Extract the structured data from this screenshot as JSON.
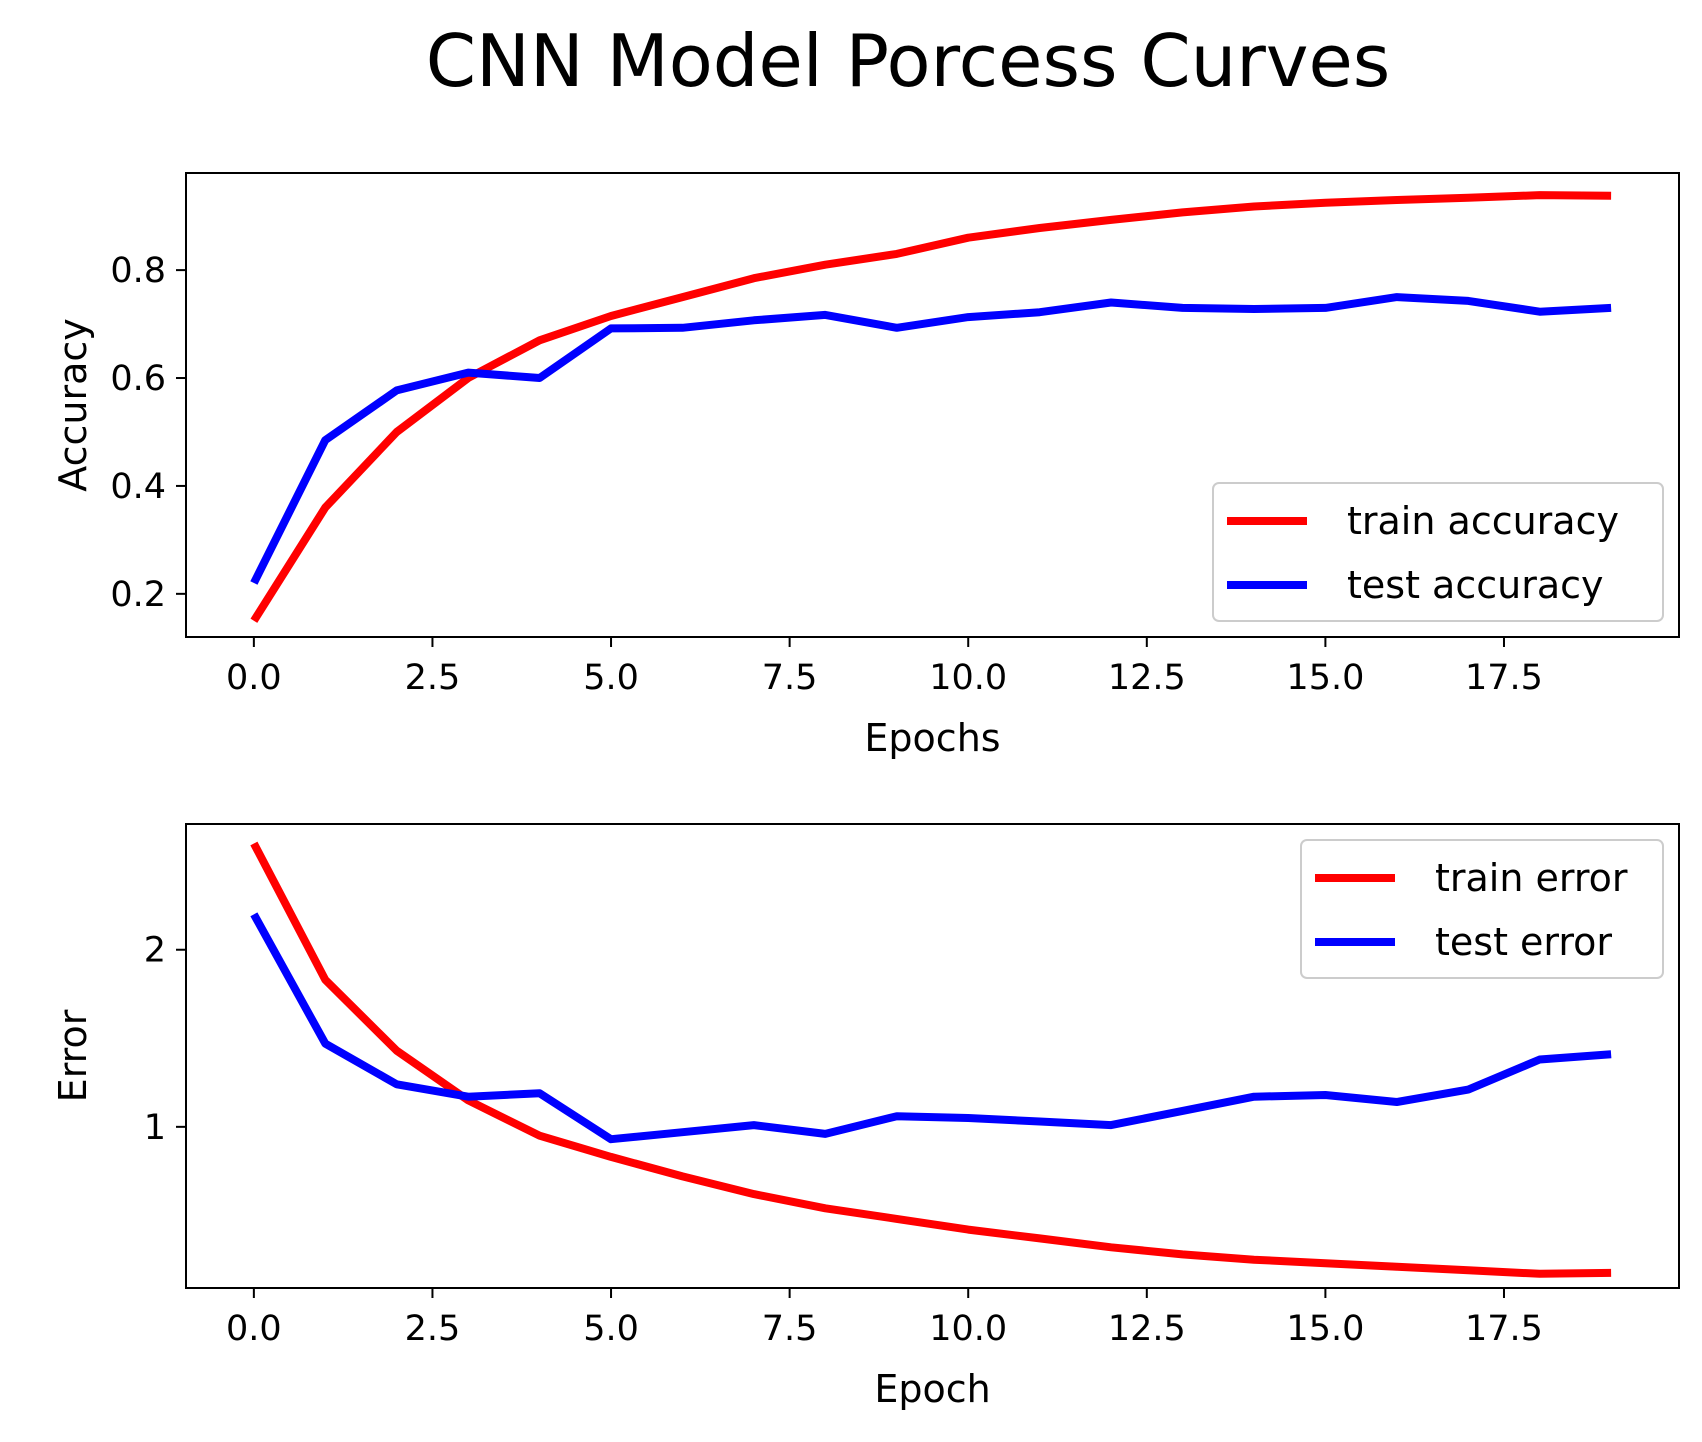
{
  "suptitle": "CNN Model Porcess Curves",
  "colors": {
    "train": "#ff0000",
    "test": "#0000ff"
  },
  "chart_data": [
    {
      "type": "line",
      "xlabel": "Epochs",
      "ylabel": "Accuracy",
      "xlim": [
        -0.95,
        19.95
      ],
      "ylim": [
        0.12,
        0.98
      ],
      "xticks": [
        0.0,
        2.5,
        5.0,
        7.5,
        10.0,
        12.5,
        15.0,
        17.5
      ],
      "xtick_labels": [
        "0.0",
        "2.5",
        "5.0",
        "7.5",
        "10.0",
        "12.5",
        "15.0",
        "17.5"
      ],
      "yticks": [
        0.2,
        0.4,
        0.6,
        0.8
      ],
      "ytick_labels": [
        "0.2",
        "0.4",
        "0.6",
        "0.8"
      ],
      "legend_position": "lower-right",
      "x": [
        0,
        1,
        2,
        3,
        4,
        5,
        6,
        7,
        8,
        9,
        10,
        11,
        12,
        13,
        14,
        15,
        16,
        17,
        18,
        19
      ],
      "series": [
        {
          "name": "train accuracy",
          "color": "#ff0000",
          "values": [
            0.15,
            0.36,
            0.5,
            0.6,
            0.67,
            0.715,
            0.75,
            0.785,
            0.81,
            0.83,
            0.86,
            0.878,
            0.893,
            0.907,
            0.918,
            0.925,
            0.93,
            0.934,
            0.939,
            0.938
          ]
        },
        {
          "name": "test accuracy",
          "color": "#0000ff",
          "values": [
            0.22,
            0.485,
            0.577,
            0.61,
            0.6,
            0.692,
            0.693,
            0.707,
            0.717,
            0.693,
            0.713,
            0.722,
            0.74,
            0.73,
            0.728,
            0.73,
            0.75,
            0.743,
            0.723,
            0.73
          ]
        }
      ]
    },
    {
      "type": "line",
      "xlabel": "Epoch",
      "ylabel": "Error",
      "xlim": [
        -0.95,
        19.95
      ],
      "ylim": [
        0.09,
        2.71
      ],
      "xticks": [
        0.0,
        2.5,
        5.0,
        7.5,
        10.0,
        12.5,
        15.0,
        17.5
      ],
      "xtick_labels": [
        "0.0",
        "2.5",
        "5.0",
        "7.5",
        "10.0",
        "12.5",
        "15.0",
        "17.5"
      ],
      "yticks": [
        1,
        2
      ],
      "ytick_labels": [
        "1",
        "2"
      ],
      "legend_position": "upper-right",
      "x": [
        0,
        1,
        2,
        3,
        4,
        5,
        6,
        7,
        8,
        9,
        10,
        11,
        12,
        13,
        14,
        15,
        16,
        17,
        18,
        19
      ],
      "series": [
        {
          "name": "train error",
          "color": "#ff0000",
          "values": [
            2.6,
            1.83,
            1.43,
            1.15,
            0.95,
            0.83,
            0.72,
            0.62,
            0.54,
            0.48,
            0.42,
            0.37,
            0.32,
            0.28,
            0.25,
            0.23,
            0.21,
            0.19,
            0.17,
            0.175
          ]
        },
        {
          "name": "test error",
          "color": "#0000ff",
          "values": [
            2.2,
            1.47,
            1.24,
            1.17,
            1.19,
            0.93,
            0.97,
            1.01,
            0.96,
            1.06,
            1.05,
            1.03,
            1.01,
            1.09,
            1.17,
            1.18,
            1.14,
            1.21,
            1.38,
            1.41
          ]
        }
      ]
    }
  ]
}
